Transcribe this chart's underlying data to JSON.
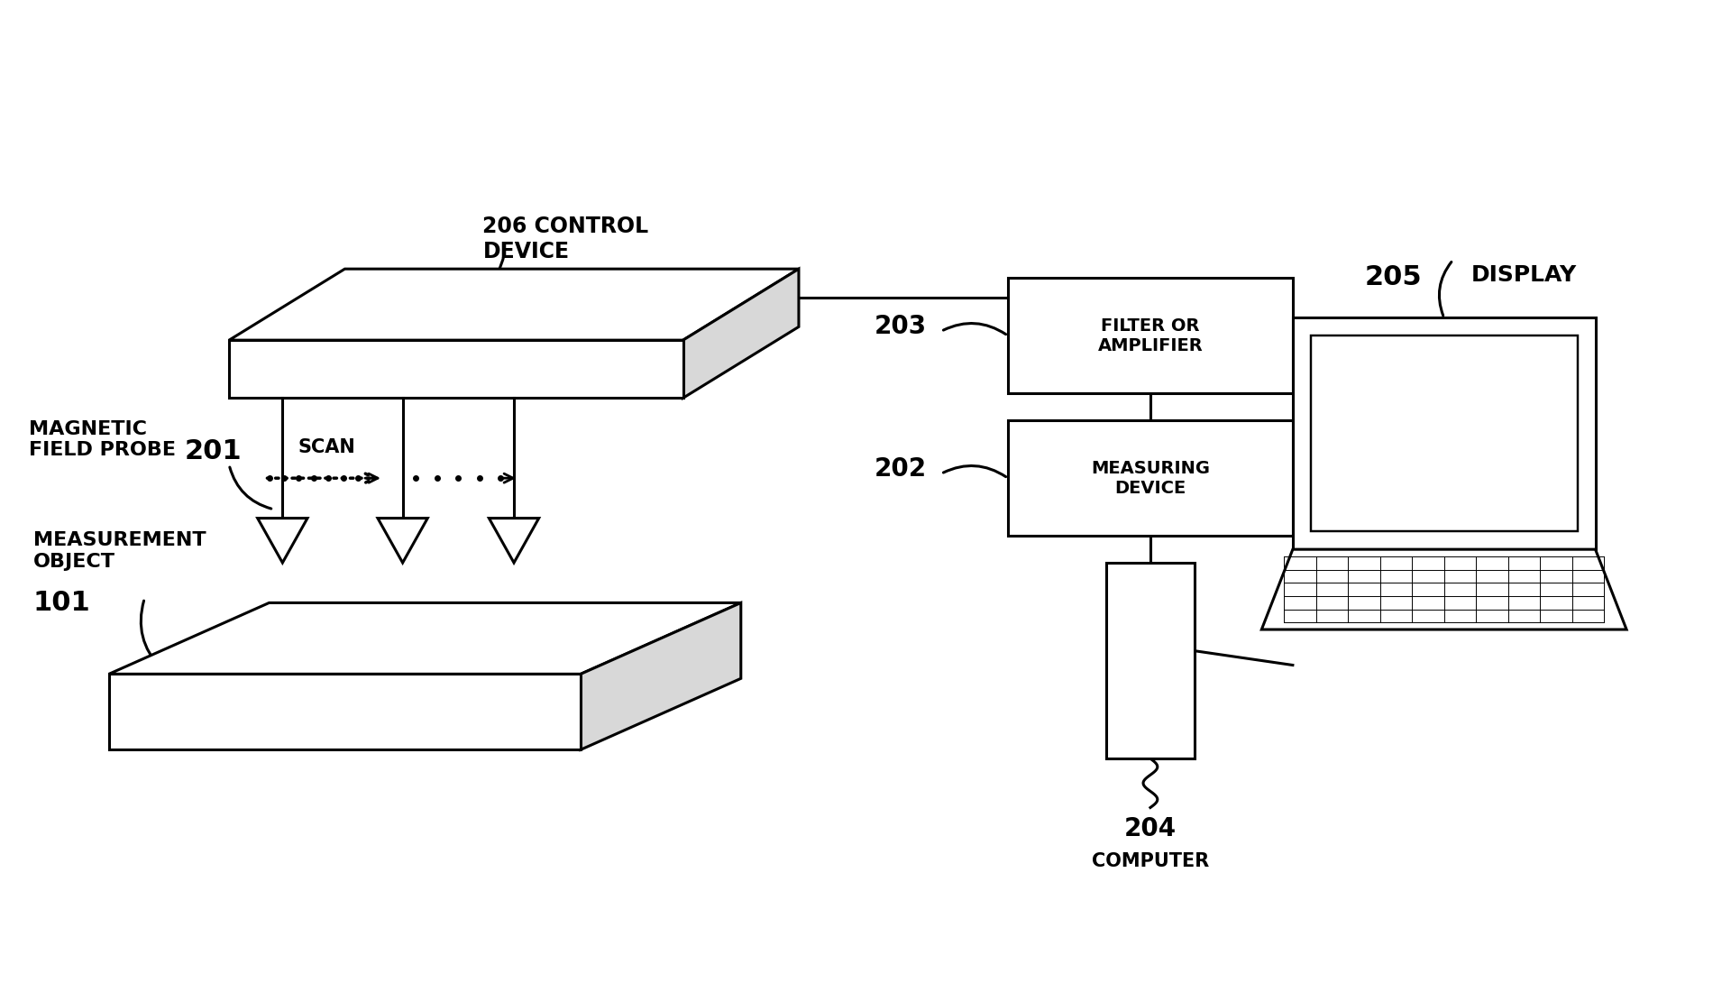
{
  "background_color": "#ffffff",
  "line_color": "#000000",
  "text_color": "#000000",
  "fig_width": 19.2,
  "fig_height": 10.9,
  "labels": {
    "control_device": "206 CONTROL\nDEVICE",
    "filter_amplifier_num": "203",
    "filter_amplifier_text": "FILTER OR\nAMPLIFIER",
    "measuring_device_num": "202",
    "measuring_device_text": "MEASURING\nDEVICE",
    "computer_num": "204",
    "computer_text": "COMPUTER",
    "display_num": "205",
    "display_text": "DISPLAY",
    "magnetic_field_probe_text": "MAGNETIC\nFIELD PROBE",
    "probe_num": "201",
    "measurement_object_text": "MEASUREMENT\nOBJECT",
    "object_num": "101",
    "scan": "SCAN"
  },
  "lw": 2.2
}
